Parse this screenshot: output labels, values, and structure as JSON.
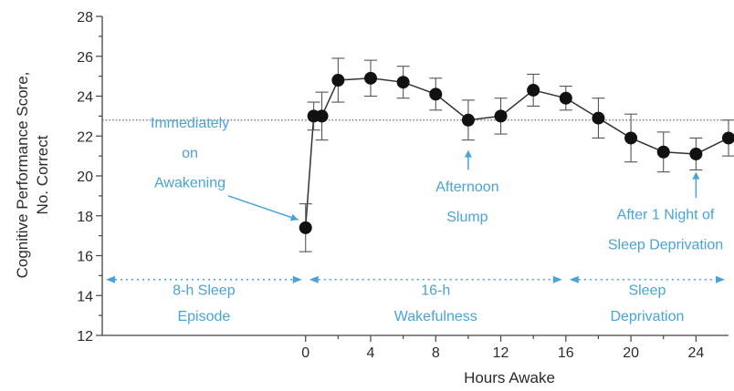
{
  "chart_data": {
    "type": "line",
    "xlabel": "Hours Awake",
    "ylabel_lines": [
      "Cognitive Performance Score,",
      "No. Correct"
    ],
    "xlim": [
      -12.5,
      26
    ],
    "ylim": [
      12,
      28
    ],
    "x_ticks": [
      0,
      4,
      8,
      12,
      16,
      20,
      24
    ],
    "y_ticks": [
      12,
      14,
      16,
      18,
      20,
      22,
      24,
      26,
      28
    ],
    "grid": false,
    "reference_line": 22.8,
    "series": [
      {
        "points": [
          {
            "x": 0,
            "y": 17.4,
            "err": 1.2
          },
          {
            "x": 0.5,
            "y": 23.0,
            "err": 0.7
          },
          {
            "x": 1,
            "y": 23.0,
            "err": 1.2
          },
          {
            "x": 2,
            "y": 24.8,
            "err": 1.1
          },
          {
            "x": 4,
            "y": 24.9,
            "err": 0.9
          },
          {
            "x": 6,
            "y": 24.7,
            "err": 0.8
          },
          {
            "x": 8,
            "y": 24.1,
            "err": 0.8
          },
          {
            "x": 10,
            "y": 22.8,
            "err": 1.0
          },
          {
            "x": 12,
            "y": 23.0,
            "err": 0.9
          },
          {
            "x": 14,
            "y": 24.3,
            "err": 0.8
          },
          {
            "x": 16,
            "y": 23.9,
            "err": 0.6
          },
          {
            "x": 18,
            "y": 22.9,
            "err": 1.0
          },
          {
            "x": 20,
            "y": 21.9,
            "err": 1.2
          },
          {
            "x": 22,
            "y": 21.2,
            "err": 1.0
          },
          {
            "x": 24,
            "y": 21.1,
            "err": 0.8
          },
          {
            "x": 26,
            "y": 21.9,
            "err": 0.9
          }
        ]
      }
    ],
    "annotations": [
      {
        "lines": [
          "Immediately",
          "on",
          "Awakening"
        ]
      },
      {
        "lines": [
          "Afternoon",
          "Slump"
        ]
      },
      {
        "lines": [
          "After 1 Night of",
          "Sleep Deprivation"
        ]
      }
    ],
    "phases": [
      {
        "lines": [
          "8-h Sleep",
          "Episode"
        ],
        "x_range": [
          -12.5,
          0
        ]
      },
      {
        "lines": [
          "16-h",
          "Wakefulness"
        ],
        "x_range": [
          0,
          16
        ]
      },
      {
        "lines": [
          "Sleep",
          "Deprivation"
        ],
        "x_range": [
          16,
          26
        ]
      }
    ]
  }
}
